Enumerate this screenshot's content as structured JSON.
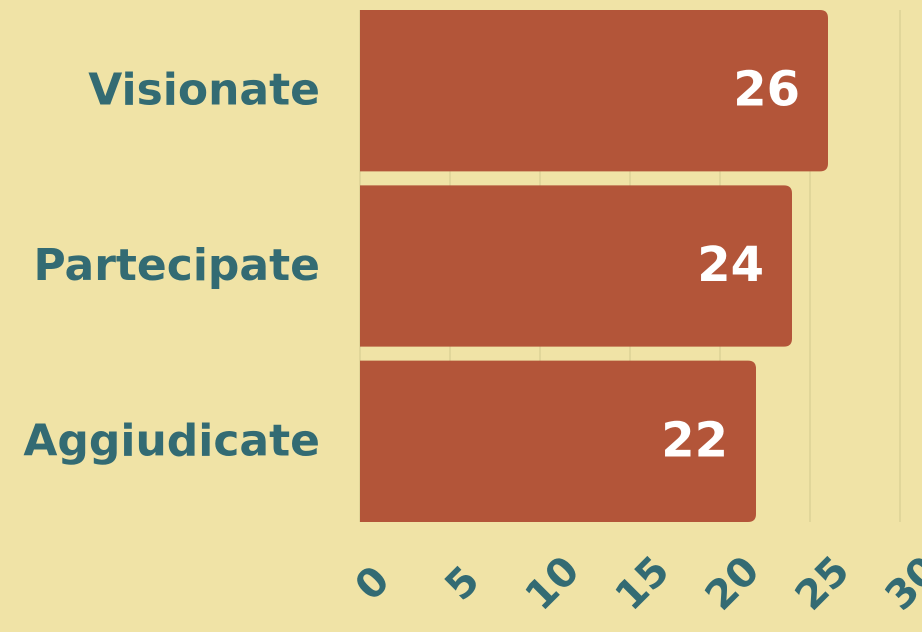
{
  "chart_data": {
    "type": "bar",
    "orientation": "horizontal",
    "categories": [
      "Visionate",
      "Partecipate",
      "Aggiudicate"
    ],
    "values": [
      26,
      24,
      22
    ],
    "color": "#b35539",
    "xlim": [
      0,
      30
    ],
    "xticks": [
      0,
      5,
      10,
      15,
      20,
      25,
      30
    ],
    "grid": true
  }
}
